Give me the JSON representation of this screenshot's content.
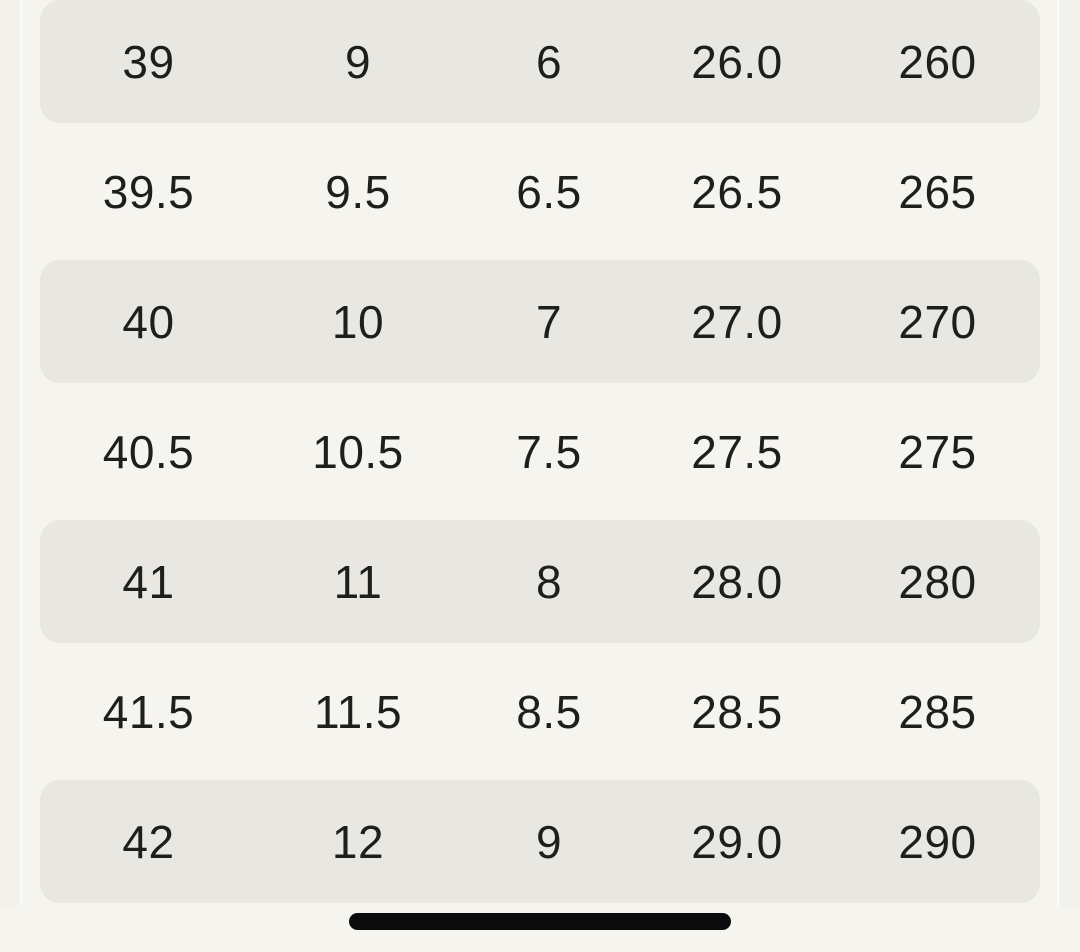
{
  "colors": {
    "page-bg": "#f5f4ee",
    "margin-bg": "#f2f1eb",
    "edge-line": "#fafaf6",
    "row-shade": "#e8e7e1",
    "text": "#1e1e1c",
    "home-indicator": "#0b0b0b"
  },
  "table": {
    "rows": [
      {
        "shaded": true,
        "cells": [
          "39",
          "9",
          "6",
          "26.0",
          "260"
        ]
      },
      {
        "shaded": false,
        "cells": [
          "39.5",
          "9.5",
          "6.5",
          "26.5",
          "265"
        ]
      },
      {
        "shaded": true,
        "cells": [
          "40",
          "10",
          "7",
          "27.0",
          "270"
        ]
      },
      {
        "shaded": false,
        "cells": [
          "40.5",
          "10.5",
          "7.5",
          "27.5",
          "275"
        ]
      },
      {
        "shaded": true,
        "cells": [
          "41",
          "11",
          "8",
          "28.0",
          "280"
        ]
      },
      {
        "shaded": false,
        "cells": [
          "41.5",
          "11.5",
          "8.5",
          "28.5",
          "285"
        ]
      },
      {
        "shaded": true,
        "cells": [
          "42",
          "12",
          "9",
          "29.0",
          "290"
        ]
      }
    ]
  }
}
